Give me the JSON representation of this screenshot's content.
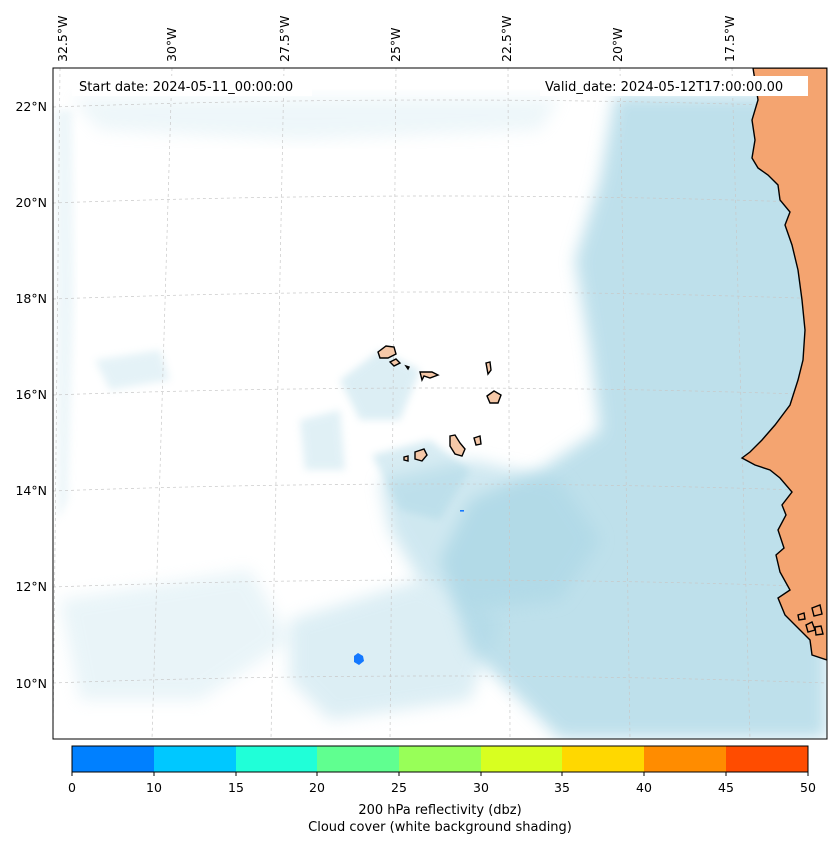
{
  "map": {
    "start_date": "Start date: 2024-05-11_00:00:00",
    "valid_date": "Valid_date: 2024-05-12T17:00:00.00",
    "lon_labels": [
      "32.5°W",
      "30°W",
      "27.5°W",
      "25°W",
      "22.5°W",
      "20°W",
      "17.5°W"
    ],
    "lat_labels": [
      "22°N",
      "20°N",
      "18°N",
      "16°N",
      "14°N",
      "12°N",
      "10°N"
    ],
    "land_color": "#f4a470",
    "cloud_color": "#a9d6e5",
    "echo_color": "#1478ff"
  },
  "colorbar": {
    "ticks": [
      "0",
      "10",
      "15",
      "20",
      "25",
      "30",
      "35",
      "40",
      "45",
      "50"
    ],
    "colors": [
      "#0080ff",
      "#00c8ff",
      "#20ffd8",
      "#60ff90",
      "#98ff58",
      "#d8ff20",
      "#ffd800",
      "#ff8c00",
      "#ff4c00"
    ],
    "label": "200 hPa reflectivity (dbz)",
    "sublabel": "Cloud cover (white background shading)"
  }
}
